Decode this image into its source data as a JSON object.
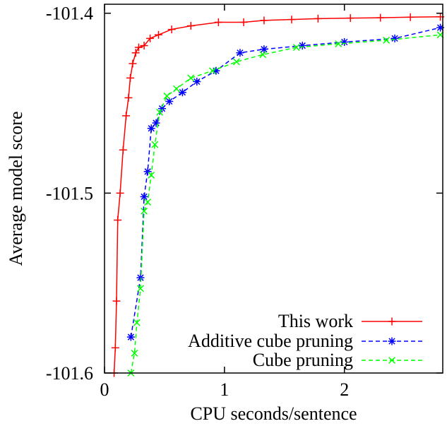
{
  "chart_data": {
    "type": "line",
    "title": "",
    "xlabel": "CPU seconds/sentence",
    "ylabel": "Average model score",
    "xlim": [
      0,
      2.82
    ],
    "ylim": [
      -101.6,
      -101.395
    ],
    "xticks": [
      {
        "value": 0,
        "label": "0"
      },
      {
        "value": 1,
        "label": "1"
      },
      {
        "value": 2,
        "label": "2"
      }
    ],
    "yticks": [
      {
        "value": -101.4,
        "label": "-101.4"
      },
      {
        "value": -101.5,
        "label": "-101.5"
      },
      {
        "value": -101.6,
        "label": "-101.6"
      }
    ],
    "legend_position": "bottom-right",
    "series": [
      {
        "name": "This work",
        "color": "#ff0000",
        "dash": "solid",
        "marker": "plus",
        "x": [
          0.08,
          0.09,
          0.1,
          0.11,
          0.13,
          0.155,
          0.18,
          0.2,
          0.215,
          0.235,
          0.26,
          0.285,
          0.33,
          0.38,
          0.45,
          0.56,
          0.72,
          0.95,
          1.16,
          1.33,
          1.56,
          1.78,
          2.05,
          2.3,
          2.55,
          2.8
        ],
        "y": [
          -101.6,
          -101.586,
          -101.56,
          -101.515,
          -101.5,
          -101.476,
          -101.457,
          -101.447,
          -101.436,
          -101.428,
          -101.422,
          -101.419,
          -101.418,
          -101.414,
          -101.412,
          -101.409,
          -101.407,
          -101.405,
          -101.405,
          -101.404,
          -101.4035,
          -101.403,
          -101.4027,
          -101.4025,
          -101.4022,
          -101.402
        ]
      },
      {
        "name": "Additive cube pruning",
        "color": "#0000ff",
        "dash": "dashed",
        "marker": "star",
        "x": [
          0.22,
          0.3,
          0.33,
          0.36,
          0.39,
          0.43,
          0.48,
          0.54,
          0.65,
          0.77,
          0.93,
          1.13,
          1.33,
          1.65,
          2.0,
          2.42,
          2.8
        ],
        "y": [
          -101.58,
          -101.547,
          -101.502,
          -101.488,
          -101.464,
          -101.461,
          -101.453,
          -101.449,
          -101.444,
          -101.438,
          -101.432,
          -101.422,
          -101.42,
          -101.418,
          -101.416,
          -101.414,
          -101.408
        ]
      },
      {
        "name": "Cube pruning",
        "color": "#00ff00",
        "dash": "dashed",
        "marker": "cross",
        "x": [
          0.22,
          0.25,
          0.27,
          0.3,
          0.33,
          0.36,
          0.39,
          0.42,
          0.46,
          0.52,
          0.6,
          0.72,
          0.9,
          1.1,
          1.32,
          1.6,
          1.95,
          2.35,
          2.8
        ],
        "y": [
          -101.6,
          -101.589,
          -101.572,
          -101.553,
          -101.51,
          -101.505,
          -101.49,
          -101.473,
          -101.455,
          -101.446,
          -101.442,
          -101.436,
          -101.432,
          -101.427,
          -101.423,
          -101.419,
          -101.417,
          -101.415,
          -101.412
        ]
      }
    ]
  }
}
